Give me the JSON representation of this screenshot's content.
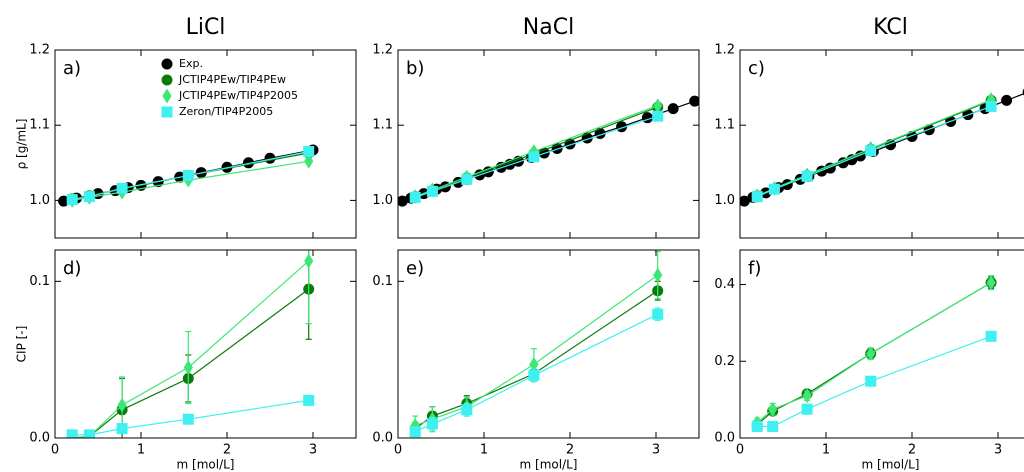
{
  "chart_data": [
    {
      "type": "scatter",
      "title": "LiCl",
      "panel_label": "a)",
      "ylabel": "ρ [g/mL]",
      "legend": "upper left",
      "xlim": [
        0,
        3.5
      ],
      "xticks": [
        0,
        1,
        2,
        3
      ],
      "xtick_labels": false,
      "ylim": [
        0.95,
        1.2
      ],
      "yticks": [
        {
          "value": 1.0,
          "label": "1.0"
        },
        {
          "value": 1.1,
          "label": "1.1"
        },
        {
          "value": 1.2,
          "label": "1.2"
        }
      ],
      "series": [
        {
          "name": "Exp.",
          "color": "#000000",
          "marker": "circle",
          "x": [
            0.1,
            0.25,
            0.4,
            0.5,
            0.7,
            0.85,
            1.0,
            1.2,
            1.45,
            1.7,
            2.0,
            2.25,
            2.5,
            3.0
          ],
          "values": [
            0.999,
            1.003,
            1.006,
            1.009,
            1.013,
            1.017,
            1.02,
            1.025,
            1.031,
            1.037,
            1.044,
            1.05,
            1.056,
            1.067
          ]
        },
        {
          "name": "JCTIP4PEw/TIP4PEw",
          "color": "#0a7a0a",
          "marker": "circle",
          "x": [
            0.2,
            0.4,
            0.78,
            1.55,
            2.95
          ],
          "values": [
            1.002,
            1.006,
            1.015,
            1.033,
            1.063
          ]
        },
        {
          "name": "JCTIP4PEw/TIP4P2005",
          "color": "#3ee676",
          "marker": "diamond",
          "x": [
            0.2,
            0.4,
            0.78,
            1.55,
            2.95
          ],
          "values": [
            1.0,
            1.004,
            1.011,
            1.027,
            1.052
          ]
        },
        {
          "name": "Zeron/TIP4P2005",
          "color": "#3ff0f0",
          "marker": "square",
          "x": [
            0.2,
            0.4,
            0.78,
            1.55,
            2.95
          ],
          "values": [
            1.001,
            1.005,
            1.016,
            1.033,
            1.065
          ]
        }
      ]
    },
    {
      "type": "scatter",
      "title": "NaCl",
      "panel_label": "b)",
      "xlim": [
        0,
        3.5
      ],
      "xticks": [
        0,
        1,
        2,
        3
      ],
      "xtick_labels": false,
      "ylim": [
        0.95,
        1.2
      ],
      "yticks": [
        {
          "value": 1.0,
          "label": "1.0"
        },
        {
          "value": 1.1,
          "label": "1.1"
        },
        {
          "value": 1.2,
          "label": "1.2"
        }
      ],
      "series": [
        {
          "color": "#000000",
          "marker": "circle",
          "x": [
            0.05,
            0.15,
            0.3,
            0.45,
            0.55,
            0.7,
            0.8,
            0.95,
            1.05,
            1.2,
            1.3,
            1.4,
            1.55,
            1.7,
            1.85,
            2.0,
            2.2,
            2.35,
            2.6,
            2.9,
            3.2,
            3.45
          ],
          "values": [
            0.999,
            1.003,
            1.009,
            1.015,
            1.018,
            1.024,
            1.028,
            1.034,
            1.038,
            1.044,
            1.048,
            1.052,
            1.057,
            1.063,
            1.069,
            1.075,
            1.083,
            1.089,
            1.098,
            1.11,
            1.122,
            1.132
          ]
        },
        {
          "color": "#0a7a0a",
          "marker": "circle",
          "x": [
            0.2,
            0.4,
            0.8,
            1.58,
            3.02
          ],
          "values": [
            1.005,
            1.013,
            1.03,
            1.062,
            1.124
          ]
        },
        {
          "color": "#3ee676",
          "marker": "diamond",
          "x": [
            0.2,
            0.4,
            0.8,
            1.58,
            3.02
          ],
          "values": [
            1.005,
            1.014,
            1.031,
            1.065,
            1.126
          ]
        },
        {
          "color": "#3ff0f0",
          "marker": "square",
          "x": [
            0.2,
            0.4,
            0.8,
            1.58,
            3.02
          ],
          "values": [
            1.004,
            1.012,
            1.028,
            1.058,
            1.112
          ]
        }
      ]
    },
    {
      "type": "scatter",
      "title": "KCl",
      "panel_label": "c)",
      "xlim": [
        0,
        3.5
      ],
      "xticks": [
        0,
        1,
        2,
        3
      ],
      "xtick_labels": false,
      "ylim": [
        0.95,
        1.2
      ],
      "yticks": [
        {
          "value": 1.0,
          "label": "1.0"
        },
        {
          "value": 1.1,
          "label": "1.1"
        },
        {
          "value": 1.2,
          "label": "1.2"
        }
      ],
      "series": [
        {
          "color": "#000000",
          "marker": "circle",
          "x": [
            0.05,
            0.15,
            0.3,
            0.45,
            0.55,
            0.7,
            0.8,
            0.95,
            1.05,
            1.2,
            1.3,
            1.4,
            1.55,
            1.75,
            2.0,
            2.2,
            2.45,
            2.65,
            2.85,
            3.1,
            3.35
          ],
          "values": [
            0.999,
            1.004,
            1.01,
            1.017,
            1.021,
            1.028,
            1.032,
            1.039,
            1.043,
            1.05,
            1.054,
            1.059,
            1.065,
            1.074,
            1.085,
            1.094,
            1.105,
            1.114,
            1.122,
            1.133,
            1.144
          ]
        },
        {
          "color": "#0a7a0a",
          "marker": "circle",
          "x": [
            0.2,
            0.4,
            0.78,
            1.52,
            2.92
          ],
          "values": [
            1.006,
            1.015,
            1.033,
            1.068,
            1.133
          ]
        },
        {
          "color": "#3ee676",
          "marker": "diamond",
          "x": [
            0.2,
            0.4,
            0.78,
            1.52,
            2.92
          ],
          "values": [
            1.006,
            1.016,
            1.034,
            1.069,
            1.134
          ]
        },
        {
          "color": "#3ff0f0",
          "marker": "square",
          "x": [
            0.2,
            0.4,
            0.78,
            1.52,
            2.92
          ],
          "values": [
            1.005,
            1.015,
            1.032,
            1.066,
            1.125
          ]
        }
      ]
    },
    {
      "type": "scatter",
      "panel_label": "d)",
      "ylabel": "CIP [-]",
      "xlabel": "m [mol/L]",
      "xlim": [
        0,
        3.5
      ],
      "xticks": [
        0,
        1,
        2,
        3
      ],
      "ylim": [
        0,
        0.12
      ],
      "yticks": [
        {
          "value": 0,
          "label": "0.0"
        },
        0.1
      ],
      "series": [
        {
          "color": "#0a7a0a",
          "marker": "circle",
          "x": [
            0.2,
            0.4,
            0.78,
            1.55,
            2.95
          ],
          "values": [
            0.0,
            0.001,
            0.018,
            0.038,
            0.095
          ],
          "errors": [
            0.001,
            0.002,
            0.02,
            0.015,
            0.032
          ]
        },
        {
          "color": "#3ee676",
          "marker": "diamond",
          "x": [
            0.2,
            0.4,
            0.78,
            1.55,
            2.95
          ],
          "values": [
            0.0,
            0.001,
            0.021,
            0.045,
            0.113
          ],
          "errors": [
            0.001,
            0.002,
            0.018,
            0.023,
            0.04
          ]
        },
        {
          "color": "#3ff0f0",
          "marker": "square",
          "x": [
            0.2,
            0.4,
            0.78,
            1.55,
            2.95
          ],
          "values": [
            0.002,
            0.002,
            0.006,
            0.012,
            0.024
          ],
          "errors": [
            0.001,
            0.001,
            0.002,
            0.001,
            0.001
          ]
        }
      ]
    },
    {
      "type": "scatter",
      "panel_label": "e)",
      "xlabel": "m [mol/L]",
      "xlim": [
        0,
        3.5
      ],
      "xticks": [
        0,
        1,
        2,
        3
      ],
      "ylim": [
        0,
        0.12
      ],
      "yticks": [
        {
          "value": 0,
          "label": "0.0"
        },
        0.1
      ],
      "series": [
        {
          "color": "#0a7a0a",
          "marker": "circle",
          "x": [
            0.2,
            0.4,
            0.8,
            1.58,
            3.02
          ],
          "values": [
            0.006,
            0.014,
            0.022,
            0.041,
            0.094
          ],
          "errors": [
            0.004,
            0.006,
            0.005,
            0.005,
            0.006
          ]
        },
        {
          "color": "#3ee676",
          "marker": "diamond",
          "x": [
            0.2,
            0.4,
            0.8,
            1.58,
            3.02
          ],
          "values": [
            0.008,
            0.012,
            0.02,
            0.047,
            0.104
          ],
          "errors": [
            0.006,
            0.008,
            0.006,
            0.01,
            0.015
          ]
        },
        {
          "color": "#3ff0f0",
          "marker": "square",
          "x": [
            0.2,
            0.4,
            0.8,
            1.58,
            3.02
          ],
          "values": [
            0.004,
            0.009,
            0.018,
            0.04,
            0.079
          ],
          "errors": [
            0.003,
            0.004,
            0.004,
            0.004,
            0.004
          ]
        }
      ]
    },
    {
      "type": "scatter",
      "panel_label": "f)",
      "xlabel": "m [mol/L]",
      "xlim": [
        0,
        3.5
      ],
      "xticks": [
        0,
        1,
        2,
        3
      ],
      "ylim": [
        0,
        0.49
      ],
      "yticks": [
        {
          "value": 0,
          "label": "0.0"
        },
        0.2,
        0.4
      ],
      "series": [
        {
          "color": "#0a7a0a",
          "marker": "circle",
          "x": [
            0.2,
            0.38,
            0.78,
            1.52,
            2.92
          ],
          "values": [
            0.035,
            0.07,
            0.115,
            0.22,
            0.405
          ],
          "errors": [
            0.01,
            0.01,
            0.01,
            0.012,
            0.015
          ]
        },
        {
          "color": "#3ee676",
          "marker": "diamond",
          "x": [
            0.2,
            0.38,
            0.78,
            1.52,
            2.92
          ],
          "values": [
            0.04,
            0.075,
            0.11,
            0.22,
            0.405
          ],
          "errors": [
            0.012,
            0.015,
            0.012,
            0.015,
            0.018
          ]
        },
        {
          "color": "#3ff0f0",
          "marker": "square",
          "x": [
            0.2,
            0.38,
            0.78,
            1.52,
            2.92
          ],
          "values": [
            0.03,
            0.03,
            0.075,
            0.148,
            0.265
          ],
          "errors": [
            0.005,
            0.005,
            0.005,
            0.005,
            0.005
          ]
        }
      ]
    }
  ]
}
